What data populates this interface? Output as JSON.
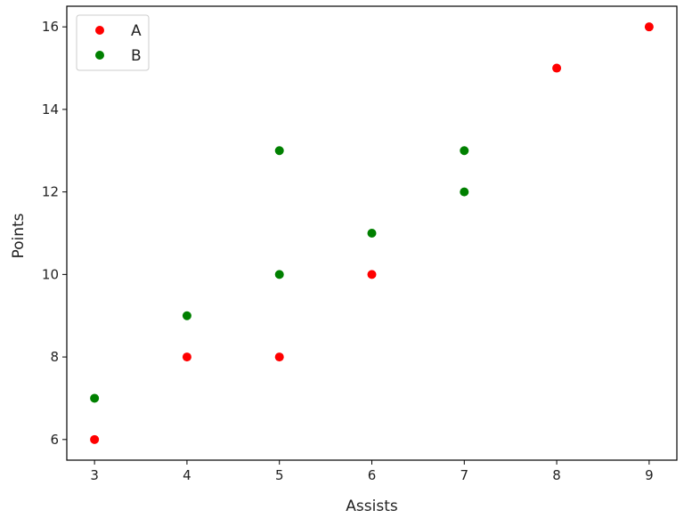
{
  "chart_data": {
    "type": "scatter",
    "title": "",
    "xlabel": "Assists",
    "ylabel": "Points",
    "xlim": [
      2.7,
      9.3
    ],
    "ylim": [
      5.5,
      16.5
    ],
    "x_ticks": [
      3,
      4,
      5,
      6,
      7,
      8,
      9
    ],
    "y_ticks": [
      6,
      8,
      10,
      12,
      14,
      16
    ],
    "grid": false,
    "legend_position": "top-left",
    "series": [
      {
        "name": "A",
        "color": "#ff0000",
        "points": [
          {
            "x": 3,
            "y": 6
          },
          {
            "x": 4,
            "y": 8
          },
          {
            "x": 5,
            "y": 8
          },
          {
            "x": 6,
            "y": 10
          },
          {
            "x": 8,
            "y": 15
          },
          {
            "x": 9,
            "y": 16
          }
        ]
      },
      {
        "name": "B",
        "color": "#008000",
        "points": [
          {
            "x": 3,
            "y": 7
          },
          {
            "x": 4,
            "y": 9
          },
          {
            "x": 5,
            "y": 10
          },
          {
            "x": 5,
            "y": 13
          },
          {
            "x": 6,
            "y": 11
          },
          {
            "x": 7,
            "y": 12
          },
          {
            "x": 7,
            "y": 13
          }
        ]
      }
    ]
  }
}
